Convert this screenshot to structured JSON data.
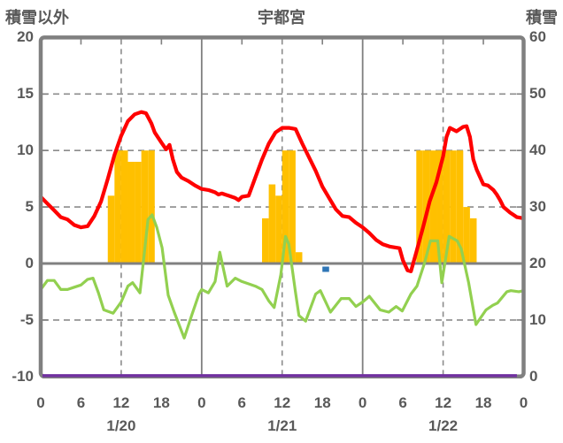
{
  "titles": {
    "left": "積雪以外",
    "center": "宇都宮",
    "right": "積雪"
  },
  "colors": {
    "red_line": "#FF0000",
    "green_line": "#92D050",
    "orange_bars": "#FFC000",
    "purple_line": "#7030A0",
    "blue_marker": "#2E75B6",
    "frame": "#808080",
    "gridline": "#8C8C8C",
    "text": "#595959"
  },
  "chart_data": {
    "type": "combo",
    "title": "宇都宮",
    "x_axis": {
      "unit": "hour",
      "range_hours": [
        0,
        72
      ],
      "tick_interval_hours": 6,
      "hour_tick_labels": [
        {
          "hour": 0,
          "label": "0"
        },
        {
          "hour": 6,
          "label": "6"
        },
        {
          "hour": 12,
          "label": "12"
        },
        {
          "hour": 18,
          "label": "18"
        },
        {
          "hour": 24,
          "label": "0"
        },
        {
          "hour": 30,
          "label": "6"
        },
        {
          "hour": 36,
          "label": "12"
        },
        {
          "hour": 42,
          "label": "18"
        },
        {
          "hour": 48,
          "label": "0"
        },
        {
          "hour": 54,
          "label": "6"
        },
        {
          "hour": 60,
          "label": "12"
        },
        {
          "hour": 66,
          "label": "18"
        },
        {
          "hour": 72,
          "label": "0"
        }
      ],
      "date_labels": [
        {
          "hour": 12,
          "label": "1/20"
        },
        {
          "hour": 36,
          "label": "1/21"
        },
        {
          "hour": 60,
          "label": "1/22"
        }
      ]
    },
    "left_axis": {
      "title": "積雪以外",
      "min": -10,
      "max": 20,
      "ticks": [
        20,
        15,
        10,
        5,
        0,
        -5,
        -10
      ],
      "tick_labels": [
        "20",
        "15",
        "10",
        "5",
        "0",
        "-5",
        "-10"
      ]
    },
    "right_axis": {
      "title": "積雪",
      "min": 0,
      "max": 60,
      "ticks": [
        60,
        50,
        40,
        30,
        20,
        10,
        0
      ],
      "tick_labels": [
        "60",
        "50",
        "40",
        "30",
        "20",
        "10",
        "0"
      ]
    },
    "gridlines": {
      "horizontal_dashed_left_values": [
        15,
        10,
        5,
        -5
      ],
      "zero_line_left_value": 0,
      "vertical_solid_hours": [
        24,
        48
      ],
      "vertical_dashed_hours": [
        12,
        36,
        60
      ],
      "border_tick_hours": [
        6,
        18,
        30,
        42,
        54,
        66
      ]
    },
    "series": {
      "red_line": {
        "type": "line",
        "axis": "left",
        "color": "#FF0000",
        "points": [
          [
            0,
            5.9
          ],
          [
            1,
            5.3
          ],
          [
            2,
            4.7
          ],
          [
            3,
            4.1
          ],
          [
            4,
            3.9
          ],
          [
            5,
            3.4
          ],
          [
            6,
            3.2
          ],
          [
            7,
            3.3
          ],
          [
            8,
            4.2
          ],
          [
            9,
            5.5
          ],
          [
            10,
            7.5
          ],
          [
            11,
            9.6
          ],
          [
            12,
            11.3
          ],
          [
            13,
            12.6
          ],
          [
            14,
            13.2
          ],
          [
            15,
            13.4
          ],
          [
            15.7,
            13.3
          ],
          [
            16.5,
            12.4
          ],
          [
            17,
            11.6
          ],
          [
            18,
            10.7
          ],
          [
            18.7,
            10.1
          ],
          [
            19.2,
            10.5
          ],
          [
            19.7,
            9.2
          ],
          [
            20.3,
            8.1
          ],
          [
            21,
            7.6
          ],
          [
            22,
            7.3
          ],
          [
            23,
            6.9
          ],
          [
            24,
            6.6
          ],
          [
            25,
            6.5
          ],
          [
            26,
            6.3
          ],
          [
            26.5,
            6.1
          ],
          [
            27,
            6.2
          ],
          [
            28,
            6.0
          ],
          [
            29,
            5.8
          ],
          [
            29.5,
            5.6
          ],
          [
            30,
            5.9
          ],
          [
            31,
            6.0
          ],
          [
            32,
            7.6
          ],
          [
            33,
            9.2
          ],
          [
            34,
            10.6
          ],
          [
            35,
            11.6
          ],
          [
            36,
            12.0
          ],
          [
            37,
            12.0
          ],
          [
            38,
            11.9
          ],
          [
            39,
            10.6
          ],
          [
            40,
            9.4
          ],
          [
            41,
            8.2
          ],
          [
            42,
            6.8
          ],
          [
            43,
            5.8
          ],
          [
            44,
            4.8
          ],
          [
            45,
            4.2
          ],
          [
            46,
            4.1
          ],
          [
            47,
            3.6
          ],
          [
            48,
            3.2
          ],
          [
            49,
            2.7
          ],
          [
            50,
            2.1
          ],
          [
            51,
            1.7
          ],
          [
            52,
            1.5
          ],
          [
            53,
            1.4
          ],
          [
            53.5,
            1.35
          ],
          [
            54,
            0.3
          ],
          [
            54.7,
            -0.6
          ],
          [
            55.2,
            -0.7
          ],
          [
            56,
            1.0
          ],
          [
            57,
            3.2
          ],
          [
            58,
            5.5
          ],
          [
            59,
            7.2
          ],
          [
            60,
            9.5
          ],
          [
            60.5,
            11.2
          ],
          [
            61,
            12.0
          ],
          [
            62,
            11.7
          ],
          [
            63,
            12.1
          ],
          [
            63.5,
            12.15
          ],
          [
            64,
            11.2
          ],
          [
            64.5,
            9.2
          ],
          [
            65,
            8.3
          ],
          [
            66,
            7.0
          ],
          [
            66.7,
            6.9
          ],
          [
            67.5,
            6.5
          ],
          [
            68,
            6.1
          ],
          [
            68.5,
            5.6
          ],
          [
            69,
            5.0
          ],
          [
            70,
            4.5
          ],
          [
            70.5,
            4.3
          ],
          [
            71,
            4.1
          ],
          [
            72,
            4.0
          ]
        ]
      },
      "green_line": {
        "type": "line",
        "axis": "left",
        "color": "#92D050",
        "points": [
          [
            0,
            -2.3
          ],
          [
            1,
            -1.5
          ],
          [
            2,
            -1.5
          ],
          [
            3,
            -2.3
          ],
          [
            4,
            -2.3
          ],
          [
            5,
            -2.1
          ],
          [
            6,
            -1.9
          ],
          [
            7,
            -1.4
          ],
          [
            7.8,
            -1.3
          ],
          [
            8.6,
            -2.6
          ],
          [
            9.4,
            -4.1
          ],
          [
            10.8,
            -4.4
          ],
          [
            12,
            -3.4
          ],
          [
            13,
            -2.0
          ],
          [
            13.7,
            -1.7
          ],
          [
            14.8,
            -2.6
          ],
          [
            16,
            3.9
          ],
          [
            16.6,
            4.3
          ],
          [
            17.3,
            3.2
          ],
          [
            18.1,
            1.4
          ],
          [
            19,
            -2.8
          ],
          [
            19.9,
            -4.3
          ],
          [
            21.4,
            -6.6
          ],
          [
            22.5,
            -4.6
          ],
          [
            23.6,
            -2.7
          ],
          [
            24,
            -2.3
          ],
          [
            25,
            -2.6
          ],
          [
            26,
            -1.6
          ],
          [
            26.7,
            1.0
          ],
          [
            27.8,
            -2.0
          ],
          [
            29,
            -1.3
          ],
          [
            30,
            -1.6
          ],
          [
            31,
            -1.8
          ],
          [
            32,
            -2.0
          ],
          [
            33,
            -2.3
          ],
          [
            34,
            -3.3
          ],
          [
            34.8,
            -3.9
          ],
          [
            35.8,
            -1.0
          ],
          [
            36.5,
            2.4
          ],
          [
            37,
            1.7
          ],
          [
            38,
            -2.6
          ],
          [
            38.5,
            -4.6
          ],
          [
            39.5,
            -5.1
          ],
          [
            41,
            -2.7
          ],
          [
            41.7,
            -2.4
          ],
          [
            43.2,
            -4.3
          ],
          [
            44.8,
            -3.1
          ],
          [
            46,
            -3.1
          ],
          [
            47,
            -3.8
          ],
          [
            48,
            -3.4
          ],
          [
            49,
            -2.9
          ],
          [
            50.6,
            -4.1
          ],
          [
            51.9,
            -4.3
          ],
          [
            53,
            -3.8
          ],
          [
            53.9,
            -4.2
          ],
          [
            55.2,
            -2.7
          ],
          [
            56.1,
            -2.0
          ],
          [
            57.2,
            0.0
          ],
          [
            58.1,
            2.0
          ],
          [
            59.2,
            2.0
          ],
          [
            59.8,
            -1.7
          ],
          [
            60.9,
            2.4
          ],
          [
            62.1,
            2.0
          ],
          [
            62.7,
            1.3
          ],
          [
            63.8,
            -1.7
          ],
          [
            64.9,
            -5.4
          ],
          [
            66.4,
            -4.1
          ],
          [
            67.4,
            -3.7
          ],
          [
            68.1,
            -3.5
          ],
          [
            69.5,
            -2.5
          ],
          [
            70.1,
            -2.4
          ],
          [
            71.3,
            -2.5
          ],
          [
            72,
            -2.4
          ]
        ]
      },
      "orange_bars": {
        "type": "bar",
        "axis": "left",
        "color": "#FFC000",
        "bars": [
          [
            10,
            6
          ],
          [
            11,
            10
          ],
          [
            12,
            10
          ],
          [
            13,
            9
          ],
          [
            14,
            9
          ],
          [
            15,
            10
          ],
          [
            16,
            10
          ],
          [
            33,
            4
          ],
          [
            34,
            7
          ],
          [
            35,
            6
          ],
          [
            36,
            10
          ],
          [
            37,
            10
          ],
          [
            38,
            1
          ],
          [
            56,
            10
          ],
          [
            57,
            10
          ],
          [
            58,
            10
          ],
          [
            59,
            10
          ],
          [
            60,
            10
          ],
          [
            61,
            10
          ],
          [
            62,
            10
          ],
          [
            63,
            5
          ],
          [
            64,
            4
          ]
        ]
      },
      "purple_line": {
        "type": "line",
        "axis": "left",
        "color": "#7030A0",
        "points": [
          [
            0,
            -10
          ],
          [
            71,
            -10
          ]
        ]
      },
      "blue_marker": {
        "type": "point",
        "color": "#2E75B6",
        "hour": 42,
        "value": -0.5
      }
    }
  }
}
